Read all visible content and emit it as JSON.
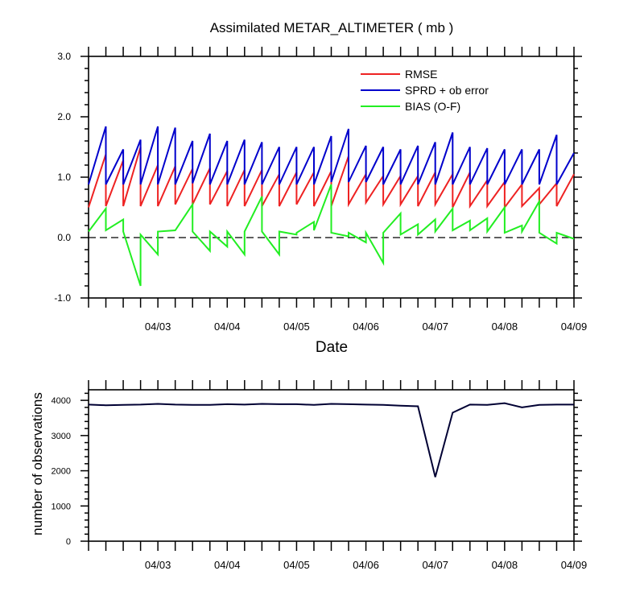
{
  "chart_data": [
    {
      "type": "line",
      "title": "Assimilated METAR_ALTIMETER ( mb )",
      "xlabel": "Date",
      "ylabel": "",
      "ylim": [
        -1.0,
        3.0
      ],
      "xlim": [
        "04/02 06Z",
        "04/09 06Z"
      ],
      "y_ticks": [
        "-1.0",
        "0.0",
        "1.0",
        "2.0",
        "3.0"
      ],
      "x_tick_labels": [
        "04/03",
        "04/04",
        "04/05",
        "04/06",
        "04/07",
        "04/08",
        "04/09"
      ],
      "x_tick_days": [
        1,
        2,
        3,
        4,
        5,
        6,
        7
      ],
      "legend_position": "top-right",
      "reference_line": {
        "y": 0.0,
        "style": "dashed"
      },
      "series": [
        {
          "name": "RMSE",
          "color": "#ee2222",
          "x": [
            0,
            0.25,
            0.25,
            0.5,
            0.5,
            0.75,
            0.75,
            1,
            1,
            1.25,
            1.25,
            1.5,
            1.5,
            1.75,
            1.75,
            2,
            2,
            2.25,
            2.25,
            2.5,
            2.5,
            2.75,
            2.75,
            3,
            3,
            3.25,
            3.25,
            3.5,
            3.5,
            3.75,
            3.75,
            4,
            4,
            4.25,
            4.25,
            4.5,
            4.5,
            4.75,
            4.75,
            5,
            5,
            5.25,
            5.25,
            5.5,
            5.5,
            5.75,
            5.75,
            6,
            6,
            6.25,
            6.25,
            6.5,
            6.5,
            6.75,
            6.75,
            7
          ],
          "values": [
            0.5,
            1.38,
            0.52,
            1.28,
            0.52,
            1.5,
            0.52,
            1.2,
            0.52,
            1.18,
            0.55,
            1.14,
            0.55,
            1.15,
            0.55,
            1.1,
            0.52,
            1.12,
            0.52,
            1.12,
            0.52,
            1.05,
            0.52,
            1.08,
            0.55,
            1.08,
            0.52,
            1.1,
            0.52,
            1.35,
            0.55,
            1.05,
            0.58,
            1.02,
            0.55,
            1.02,
            0.55,
            1.02,
            0.52,
            1.08,
            0.55,
            1.05,
            0.5,
            1.08,
            0.52,
            0.95,
            0.52,
            0.92,
            0.5,
            0.88,
            0.52,
            0.82,
            0.55,
            0.9,
            0.52,
            1.05
          ]
        },
        {
          "name": "SPRD + ob error",
          "color": "#0000cc",
          "x": [
            0,
            0.25,
            0.25,
            0.5,
            0.5,
            0.75,
            0.75,
            1,
            1,
            1.25,
            1.25,
            1.5,
            1.5,
            1.75,
            1.75,
            2,
            2,
            2.25,
            2.25,
            2.5,
            2.5,
            2.75,
            2.75,
            3,
            3,
            3.25,
            3.25,
            3.5,
            3.5,
            3.75,
            3.75,
            4,
            4,
            4.25,
            4.25,
            4.5,
            4.5,
            4.75,
            4.75,
            5,
            5,
            5.25,
            5.25,
            5.5,
            5.5,
            5.75,
            5.75,
            6,
            6,
            6.25,
            6.25,
            6.5,
            6.5,
            6.75,
            6.75,
            7
          ],
          "values": [
            0.88,
            1.84,
            0.88,
            1.46,
            0.88,
            1.62,
            0.88,
            1.84,
            0.88,
            1.82,
            0.88,
            1.6,
            0.9,
            1.72,
            0.88,
            1.6,
            0.88,
            1.62,
            0.88,
            1.58,
            0.88,
            1.5,
            0.88,
            1.5,
            0.88,
            1.5,
            0.88,
            1.68,
            0.92,
            1.8,
            0.92,
            1.52,
            0.92,
            1.5,
            0.88,
            1.46,
            0.88,
            1.52,
            0.88,
            1.58,
            0.88,
            1.74,
            0.88,
            1.5,
            0.88,
            1.48,
            0.88,
            1.46,
            0.88,
            1.46,
            0.88,
            1.46,
            0.88,
            1.7,
            0.88,
            1.4
          ]
        },
        {
          "name": "BIAS (O-F)",
          "color": "#22ee22",
          "x": [
            0,
            0.25,
            0.25,
            0.5,
            0.5,
            0.75,
            0.75,
            1,
            1,
            1.25,
            1.25,
            1.5,
            1.5,
            1.75,
            1.75,
            2,
            2,
            2.25,
            2.25,
            2.5,
            2.5,
            2.75,
            2.75,
            3,
            3,
            3.25,
            3.25,
            3.5,
            3.5,
            3.75,
            3.75,
            4,
            4,
            4.25,
            4.25,
            4.5,
            4.5,
            4.75,
            4.75,
            5,
            5,
            5.25,
            5.25,
            5.5,
            5.5,
            5.75,
            5.75,
            6,
            6,
            6.25,
            6.25,
            6.5,
            6.5,
            6.75,
            6.75,
            7
          ],
          "values": [
            0.1,
            0.48,
            0.12,
            0.3,
            0.1,
            -0.8,
            0.05,
            -0.28,
            0.1,
            0.12,
            0.12,
            0.55,
            0.1,
            -0.22,
            0.1,
            -0.15,
            0.1,
            -0.28,
            0.1,
            0.68,
            0.1,
            -0.28,
            0.1,
            0.05,
            0.08,
            0.26,
            0.12,
            0.88,
            0.08,
            0.02,
            0.08,
            -0.08,
            0.08,
            -0.42,
            0.08,
            0.4,
            0.05,
            0.22,
            0.05,
            0.3,
            0.1,
            0.48,
            0.12,
            0.28,
            0.12,
            0.32,
            0.1,
            0.5,
            0.08,
            0.2,
            0.1,
            0.6,
            0.08,
            -0.1,
            0.08,
            -0.02
          ]
        }
      ]
    },
    {
      "type": "line",
      "title": "",
      "xlabel": "",
      "ylabel": "number of observations",
      "ylim": [
        0,
        4300
      ],
      "xlim": [
        "04/02 06Z",
        "04/09 06Z"
      ],
      "y_ticks": [
        "0",
        "1000",
        "2000",
        "3000",
        "4000"
      ],
      "x_tick_labels": [
        "04/03",
        "04/04",
        "04/05",
        "04/06",
        "04/07",
        "04/08",
        "04/09"
      ],
      "x_tick_days": [
        1,
        2,
        3,
        4,
        5,
        6,
        7
      ],
      "series": [
        {
          "color": "#000033",
          "x": [
            0,
            0.25,
            0.5,
            0.75,
            1,
            1.25,
            1.5,
            1.75,
            2,
            2.25,
            2.5,
            2.75,
            3,
            3.25,
            3.5,
            3.75,
            4,
            4.25,
            4.5,
            4.75,
            5,
            5.25,
            5.5,
            5.75,
            6,
            6.25,
            6.5,
            6.75,
            7
          ],
          "values": [
            3880,
            3860,
            3870,
            3880,
            3900,
            3880,
            3870,
            3870,
            3890,
            3880,
            3900,
            3890,
            3890,
            3870,
            3900,
            3890,
            3880,
            3870,
            3850,
            3830,
            1820,
            3650,
            3880,
            3870,
            3920,
            3800,
            3870,
            3880,
            3880
          ]
        }
      ]
    }
  ]
}
